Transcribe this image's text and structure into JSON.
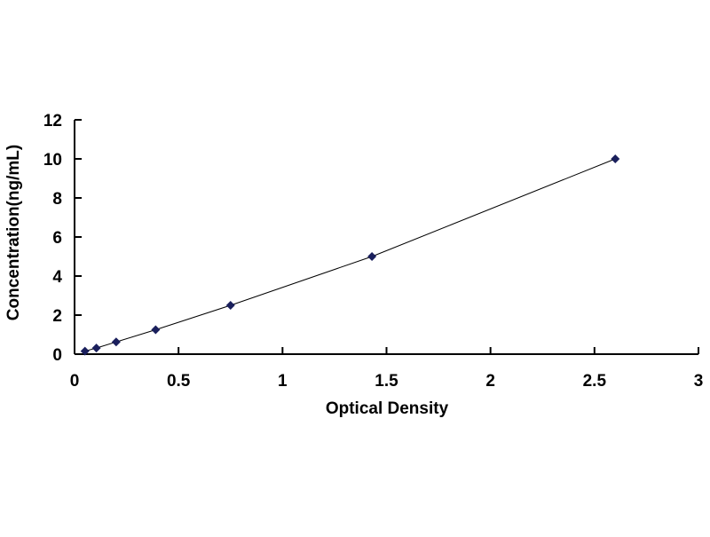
{
  "chart_data": {
    "type": "scatter",
    "title": "",
    "xlabel": "Optical Density",
    "ylabel": "Concentration(ng/mL)",
    "xlim": [
      0,
      3
    ],
    "ylim": [
      0,
      12
    ],
    "xticks": [
      "0",
      "0.5",
      "1",
      "1.5",
      "2",
      "2.5",
      "3"
    ],
    "yticks": [
      "0",
      "2",
      "4",
      "6",
      "8",
      "10",
      "12"
    ],
    "grid": false,
    "trendline": true,
    "marker": "diamond",
    "color": "#1a1f5c",
    "points": [
      {
        "x": 0.05,
        "y": 0.156
      },
      {
        "x": 0.105,
        "y": 0.312
      },
      {
        "x": 0.2,
        "y": 0.625
      },
      {
        "x": 0.39,
        "y": 1.25
      },
      {
        "x": 0.75,
        "y": 2.5
      },
      {
        "x": 1.43,
        "y": 5
      },
      {
        "x": 2.6,
        "y": 10
      }
    ]
  }
}
